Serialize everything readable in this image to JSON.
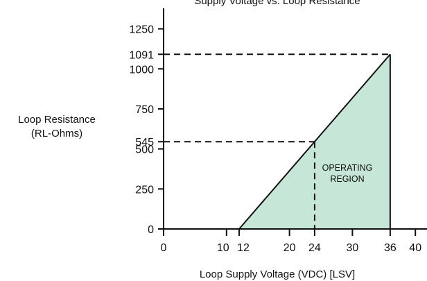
{
  "chart_data": {
    "type": "area",
    "title": "Supply Voltage vs. Loop Resistance",
    "xlabel": "Loop Supply Voltage (VDC) [LSV]",
    "ylabel_lines": [
      "Loop Resistance",
      "(RL-Ohms)"
    ],
    "xlim": [
      0,
      40
    ],
    "ylim": [
      0,
      1400
    ],
    "x_ticks": [
      0,
      10,
      12,
      20,
      24,
      30,
      36,
      40
    ],
    "x_tick_labels": [
      "0",
      "10",
      "12",
      "20",
      "24",
      "30",
      "36",
      "40"
    ],
    "y_ticks": [
      0,
      250,
      500,
      545,
      750,
      1000,
      1091,
      1250
    ],
    "y_tick_labels": [
      "0",
      "250",
      "500",
      "545",
      "750",
      "1000",
      "1091",
      "1250"
    ],
    "series": [
      {
        "points": [
          [
            12,
            0
          ],
          [
            36,
            1091
          ]
        ]
      }
    ],
    "region_points": [
      [
        12,
        0
      ],
      [
        36,
        1091
      ],
      [
        36,
        0
      ]
    ],
    "region_fill": "#c6e6d8",
    "region_label_lines": [
      "OPERATING",
      "REGION"
    ],
    "reference_lines": [
      {
        "x": 24,
        "y": 545
      },
      {
        "x": 36,
        "y": 1091
      }
    ],
    "grid": false
  }
}
